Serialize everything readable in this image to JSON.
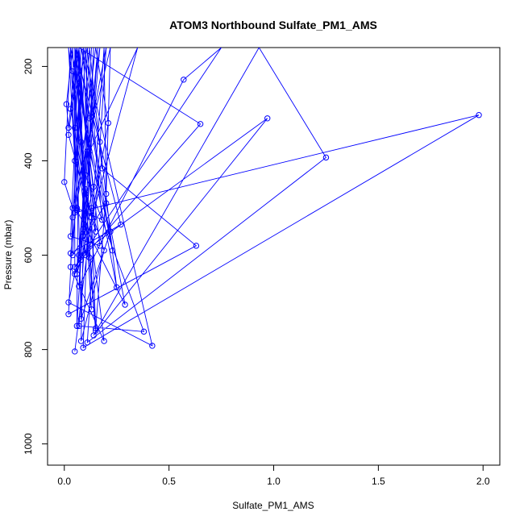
{
  "chart_data": {
    "type": "line",
    "title": "ATOM3 Northbound Sulfate_PM1_AMS",
    "xlabel": "Sulfate_PM1_AMS",
    "ylabel": "Pressure (mbar)",
    "xlim": [
      -0.08,
      2.08
    ],
    "ylim": [
      1045,
      160
    ],
    "y_inverted": true,
    "grid": false,
    "legend": "none",
    "x_ticks": [
      0.0,
      0.5,
      1.0,
      1.5,
      2.0
    ],
    "x_tick_labels": [
      "0.0",
      "0.5",
      "1.0",
      "1.5",
      "2.0"
    ],
    "y_ticks": [
      200,
      400,
      600,
      800,
      1000
    ],
    "y_tick_labels": [
      "200",
      "400",
      "600",
      "800",
      "1000"
    ],
    "color": "#0000ff",
    "marker": "open-circle",
    "series": [
      {
        "points": [
          [
            0.05,
            804
          ],
          [
            0.13,
            520
          ],
          [
            0.02,
            345
          ],
          [
            0.07,
            160
          ],
          [
            0.06,
            750
          ],
          [
            0.1,
            460
          ],
          [
            0.03,
            290
          ],
          [
            0.11,
            160
          ],
          [
            0.08,
            782
          ],
          [
            0.19,
            590
          ],
          [
            0.05,
            400
          ],
          [
            0.02,
            160
          ],
          [
            0.19,
            782
          ],
          [
            0.03,
            625
          ],
          [
            0.04,
            520
          ],
          [
            0.09,
            160
          ],
          [
            0.42,
            792
          ],
          [
            0.02,
            700
          ],
          [
            0.1,
            540
          ],
          [
            0.14,
            160
          ],
          [
            0.09,
            796
          ],
          [
            1.98,
            303
          ],
          [
            0.05,
            510
          ],
          [
            0.2,
            160
          ],
          [
            0.11,
            785
          ],
          [
            1.25,
            393
          ],
          [
            0.93,
            160
          ],
          [
            0.14,
            770
          ],
          [
            0.97,
            310
          ],
          [
            0.07,
            600
          ],
          [
            0.16,
            160
          ],
          [
            0.07,
            750
          ],
          [
            0.38,
            762
          ],
          [
            0.1,
            430
          ],
          [
            0.05,
            160
          ],
          [
            0.15,
            760
          ],
          [
            0.04,
            210
          ],
          [
            0.06,
            160
          ],
          [
            0.29,
            705
          ],
          [
            0.06,
            505
          ],
          [
            0.03,
            160
          ],
          [
            0.25,
            668
          ],
          [
            0.17,
            360
          ],
          [
            0.08,
            160
          ],
          [
            0.02,
            725
          ],
          [
            0.63,
            580
          ],
          [
            0.18,
            416
          ],
          [
            0.12,
            160
          ],
          [
            0.07,
            666
          ],
          [
            0.57,
            228
          ],
          [
            0.75,
            160
          ],
          [
            0.05,
            625
          ],
          [
            0.65,
            322
          ],
          [
            0.07,
            160
          ],
          [
            0.1,
            600
          ],
          [
            0.21,
            320
          ],
          [
            0.15,
            160
          ],
          [
            0.03,
            596
          ],
          [
            0.27,
            535
          ],
          [
            0.05,
            160
          ],
          [
            0.13,
            715
          ],
          [
            0.08,
            360
          ],
          [
            0.1,
            160
          ],
          [
            0.15,
            755
          ],
          [
            0.2,
            470
          ],
          [
            0.22,
            160
          ],
          [
            0.04,
            500
          ],
          [
            0.0,
            445
          ],
          [
            0.03,
            160
          ],
          [
            0.23,
            590
          ],
          [
            0.12,
            310
          ],
          [
            0.17,
            160
          ],
          [
            0.09,
            545
          ],
          [
            0.14,
            455
          ],
          [
            0.05,
            160
          ],
          [
            0.08,
            735
          ],
          [
            0.22,
            550
          ],
          [
            0.12,
            380
          ],
          [
            0.35,
            160
          ],
          [
            0.06,
            640
          ],
          [
            0.11,
            380
          ],
          [
            0.09,
            160
          ],
          [
            0.04,
            600
          ],
          [
            0.2,
            490
          ],
          [
            0.19,
            160
          ],
          [
            0.12,
            605
          ],
          [
            0.05,
            330
          ],
          [
            0.06,
            160
          ],
          [
            0.02,
            330
          ],
          [
            0.01,
            280
          ],
          [
            0.04,
            160
          ],
          [
            0.06,
            500
          ],
          [
            0.18,
            525
          ],
          [
            0.11,
            160
          ],
          [
            0.09,
            560
          ],
          [
            0.13,
            500
          ],
          [
            0.07,
            160
          ],
          [
            0.03,
            560
          ],
          [
            0.17,
            580
          ],
          [
            0.06,
            160
          ],
          [
            0.15,
            550
          ],
          [
            0.1,
            470
          ],
          [
            0.05,
            160
          ],
          [
            0.05,
            640
          ],
          [
            0.08,
            610
          ],
          [
            0.13,
            160
          ]
        ]
      }
    ]
  }
}
